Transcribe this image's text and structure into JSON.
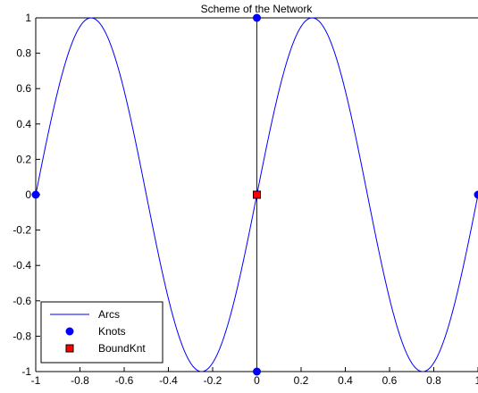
{
  "chart_data": {
    "type": "line",
    "title": "Scheme of the Network",
    "xlabel": "",
    "ylabel": "",
    "xlim": [
      -1,
      1
    ],
    "ylim": [
      -1,
      1
    ],
    "grid": false,
    "legend_placement": "bottom-left",
    "x_ticks": [
      -1,
      -0.8,
      -0.6,
      -0.4,
      -0.2,
      0,
      0.2,
      0.4,
      0.6,
      0.8,
      1
    ],
    "x_tick_labels": [
      "-1",
      "-0.8",
      "-0.6",
      "-0.4",
      "-0.2",
      "0",
      "0.2",
      "0.4",
      "0.6",
      "0.8",
      "1"
    ],
    "y_ticks": [
      -1,
      -0.8,
      -0.6,
      -0.4,
      -0.2,
      0,
      0.2,
      0.4,
      0.6,
      0.8,
      1
    ],
    "y_tick_labels": [
      "-1",
      "-0.8",
      "-0.6",
      "-0.4",
      "-0.2",
      "0",
      "0.2",
      "0.4",
      "0.6",
      "0.8",
      "1"
    ],
    "series": [
      {
        "name": "Arcs",
        "style": "line",
        "color": "#0000ff",
        "segments": [
          {
            "function": "sin(2*pi*x)",
            "x_range": [
              -1,
              1
            ]
          },
          {
            "points": [
              [
                0,
                -1
              ],
              [
                0,
                1
              ]
            ]
          }
        ]
      },
      {
        "name": "Knots",
        "style": "marker-circle",
        "color": "#0000ff",
        "points": [
          [
            -1,
            0
          ],
          [
            0,
            1
          ],
          [
            0,
            -1
          ],
          [
            1,
            0
          ]
        ]
      },
      {
        "name": "BoundKnt",
        "style": "marker-square",
        "color": "#ff0000",
        "points": [
          [
            0,
            0
          ]
        ]
      }
    ]
  }
}
